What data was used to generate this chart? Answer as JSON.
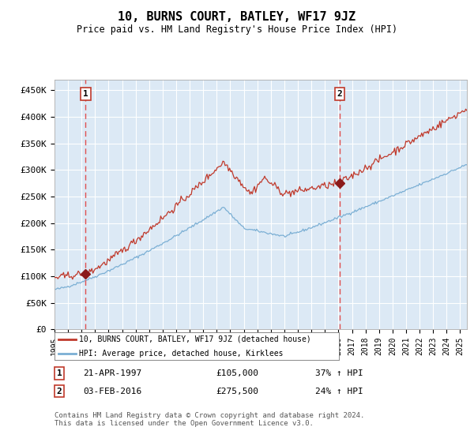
{
  "title": "10, BURNS COURT, BATLEY, WF17 9JZ",
  "subtitle": "Price paid vs. HM Land Registry's House Price Index (HPI)",
  "background_color": "#dce9f5",
  "plot_bg_color": "#dce9f5",
  "hpi_color": "#7bafd4",
  "price_color": "#c0392b",
  "marker_color": "#8b1a1a",
  "dashed_line_color": "#e05050",
  "ylim": [
    0,
    470000
  ],
  "yticks": [
    0,
    50000,
    100000,
    150000,
    200000,
    250000,
    300000,
    350000,
    400000,
    450000
  ],
  "ytick_labels": [
    "£0",
    "£50K",
    "£100K",
    "£150K",
    "£200K",
    "£250K",
    "£300K",
    "£350K",
    "£400K",
    "£450K"
  ],
  "legend_line1": "10, BURNS COURT, BATLEY, WF17 9JZ (detached house)",
  "legend_line2": "HPI: Average price, detached house, Kirklees",
  "sale1_date": "21-APR-1997",
  "sale1_price": 105000,
  "sale1_label": "1",
  "sale1_pct": "37% ↑ HPI",
  "sale2_date": "03-FEB-2016",
  "sale2_price": 275500,
  "sale2_label": "2",
  "sale2_pct": "24% ↑ HPI",
  "footer": "Contains HM Land Registry data © Crown copyright and database right 2024.\nThis data is licensed under the Open Government Licence v3.0.",
  "sale1_year": 1997.3,
  "sale2_year": 2016.1,
  "xmin": 1995,
  "xmax": 2025.5
}
